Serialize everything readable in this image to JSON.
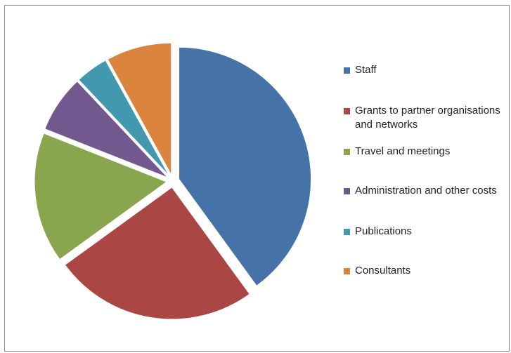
{
  "chart_data": {
    "type": "pie",
    "slices": [
      {
        "label": "Staff",
        "value": 40,
        "color": "#4572A7"
      },
      {
        "label": "Grants to partner organisations and networks",
        "value": 25,
        "color": "#AA4643"
      },
      {
        "label": "Travel and meetings",
        "value": 16,
        "color": "#89A54E"
      },
      {
        "label": "Administration and other costs",
        "value": 7,
        "color": "#71588F"
      },
      {
        "label": "Publications",
        "value": 4,
        "color": "#4198AF"
      },
      {
        "label": "Consultants",
        "value": 8,
        "color": "#DB843D"
      }
    ],
    "legend_position": "right",
    "exploded": true
  }
}
